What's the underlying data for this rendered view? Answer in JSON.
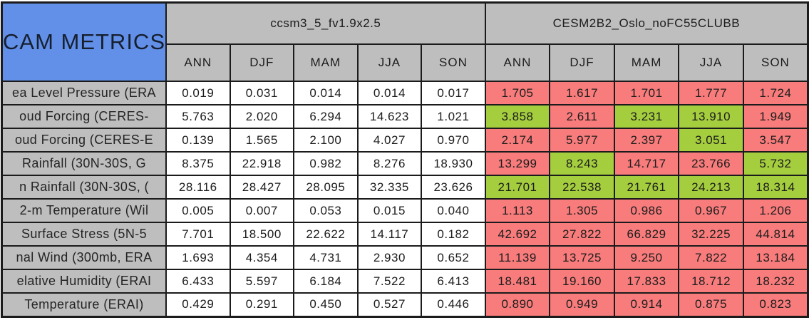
{
  "chart_data": {
    "type": "table",
    "title": "CAM METRICS",
    "colors": {
      "title_bg": "#6290E8",
      "header_bg": "#BEBEBE",
      "worse": "#F87C7C",
      "better": "#A5CE3F",
      "border": "#1b1b1b"
    },
    "legend_meaning": {
      "better": "green cell: test case RMSE improved vs control",
      "worse": "red cell: test case RMSE degraded vs control"
    },
    "models": [
      {
        "name": "ccsm3_5_fv1.9x2.5",
        "seasons": [
          "ANN",
          "DJF",
          "MAM",
          "JJA",
          "SON"
        ]
      },
      {
        "name": "CESM2B2_Oslo_noFC55CLUBB",
        "seasons": [
          "ANN",
          "DJF",
          "MAM",
          "JJA",
          "SON"
        ]
      }
    ],
    "rows": [
      {
        "label": "ea Level Pressure (ERA",
        "m1": [
          "0.019",
          "0.031",
          "0.014",
          "0.014",
          "0.017"
        ],
        "m2": [
          "1.705",
          "1.617",
          "1.701",
          "1.777",
          "1.724"
        ],
        "m2_status": [
          "worse",
          "worse",
          "worse",
          "worse",
          "worse"
        ]
      },
      {
        "label": "oud Forcing (CERES-",
        "m1": [
          "5.763",
          "2.020",
          "6.294",
          "14.623",
          "1.021"
        ],
        "m2": [
          "3.858",
          "2.611",
          "3.231",
          "13.910",
          "1.949"
        ],
        "m2_status": [
          "better",
          "worse",
          "better",
          "better",
          "worse"
        ]
      },
      {
        "label": "oud Forcing (CERES-E",
        "m1": [
          "0.139",
          "1.565",
          "2.100",
          "4.027",
          "0.970"
        ],
        "m2": [
          "2.174",
          "5.977",
          "2.397",
          "3.051",
          "3.547"
        ],
        "m2_status": [
          "worse",
          "worse",
          "worse",
          "better",
          "worse"
        ]
      },
      {
        "label": "Rainfall (30N-30S, G",
        "m1": [
          "8.375",
          "22.918",
          "0.982",
          "8.276",
          "18.930"
        ],
        "m2": [
          "13.299",
          "8.243",
          "14.717",
          "23.766",
          "5.732"
        ],
        "m2_status": [
          "worse",
          "better",
          "worse",
          "worse",
          "better"
        ]
      },
      {
        "label": "n Rainfall (30N-30S, (",
        "m1": [
          "28.116",
          "28.427",
          "28.095",
          "32.335",
          "23.626"
        ],
        "m2": [
          "21.701",
          "22.538",
          "21.761",
          "24.213",
          "18.314"
        ],
        "m2_status": [
          "better",
          "better",
          "better",
          "better",
          "better"
        ]
      },
      {
        "label": "2-m Temperature (Wil",
        "m1": [
          "0.005",
          "0.007",
          "0.053",
          "0.015",
          "0.040"
        ],
        "m2": [
          "1.113",
          "1.305",
          "0.986",
          "0.967",
          "1.206"
        ],
        "m2_status": [
          "worse",
          "worse",
          "worse",
          "worse",
          "worse"
        ]
      },
      {
        "label": "Surface Stress (5N-5",
        "m1": [
          "7.701",
          "18.500",
          "22.622",
          "14.117",
          "0.182"
        ],
        "m2": [
          "42.692",
          "27.822",
          "66.829",
          "32.225",
          "44.814"
        ],
        "m2_status": [
          "worse",
          "worse",
          "worse",
          "worse",
          "worse"
        ]
      },
      {
        "label": "nal Wind (300mb, ERA",
        "m1": [
          "1.693",
          "4.354",
          "4.731",
          "2.930",
          "0.652"
        ],
        "m2": [
          "11.139",
          "13.725",
          "9.250",
          "7.822",
          "13.184"
        ],
        "m2_status": [
          "worse",
          "worse",
          "worse",
          "worse",
          "worse"
        ]
      },
      {
        "label": "elative Humidity (ERAI",
        "m1": [
          "6.433",
          "5.597",
          "6.184",
          "7.522",
          "6.413"
        ],
        "m2": [
          "18.481",
          "19.160",
          "17.833",
          "18.712",
          "18.232"
        ],
        "m2_status": [
          "worse",
          "worse",
          "worse",
          "worse",
          "worse"
        ]
      },
      {
        "label": "Temperature (ERAI)",
        "m1": [
          "0.429",
          "0.291",
          "0.450",
          "0.527",
          "0.446"
        ],
        "m2": [
          "0.890",
          "0.949",
          "0.914",
          "0.875",
          "0.823"
        ],
        "m2_status": [
          "worse",
          "worse",
          "worse",
          "worse",
          "worse"
        ]
      }
    ]
  }
}
